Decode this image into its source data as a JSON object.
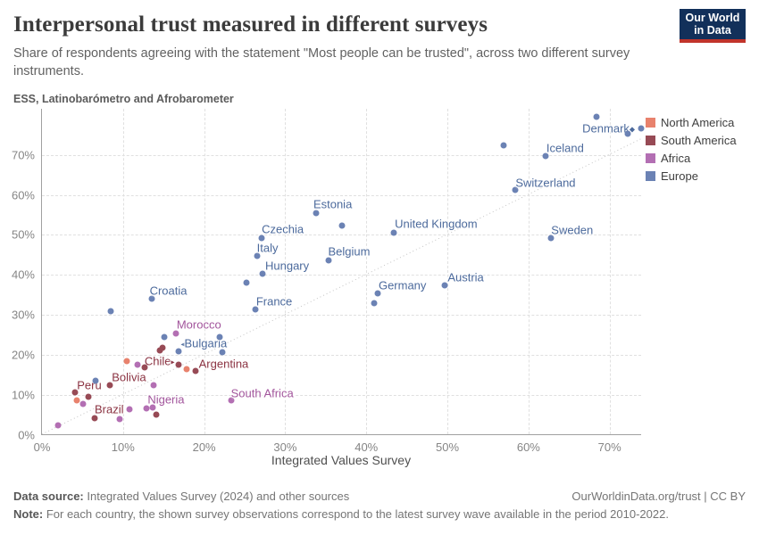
{
  "header": {
    "title": "Interpersonal trust measured in different surveys",
    "subtitle": "Share of respondents agreeing with the statement \"Most people can be trusted\", across two different survey instruments.",
    "logo": {
      "line1": "Our World",
      "line2": "in Data",
      "bg_color": "#12305a",
      "bar_color": "#c1342b"
    }
  },
  "chart_data": {
    "type": "scatter",
    "small_title": "ESS, Latinobarómetro and Afrobarometer",
    "xlabel": "Integrated Values Survey",
    "ylabel": "ESS, Latinobarómetro and Afrobarometer",
    "xlim": [
      0,
      74
    ],
    "ylim": [
      0,
      81.5
    ],
    "grid": true,
    "identity_line": true,
    "x_ticks": [
      {
        "value": 0,
        "label": "0%"
      },
      {
        "value": 10,
        "label": "10%"
      },
      {
        "value": 20,
        "label": "20%"
      },
      {
        "value": 30,
        "label": "30%"
      },
      {
        "value": 40,
        "label": "40%"
      },
      {
        "value": 50,
        "label": "50%"
      },
      {
        "value": 60,
        "label": "60%"
      },
      {
        "value": 70,
        "label": "70%"
      }
    ],
    "y_ticks": [
      {
        "value": 0,
        "label": "0%"
      },
      {
        "value": 10,
        "label": "10%"
      },
      {
        "value": 20,
        "label": "20%"
      },
      {
        "value": 30,
        "label": "30%"
      },
      {
        "value": 40,
        "label": "40%"
      },
      {
        "value": 50,
        "label": "50%"
      },
      {
        "value": 60,
        "label": "60%"
      },
      {
        "value": 70,
        "label": "70%"
      }
    ],
    "series": [
      {
        "name": "North America",
        "color": "#e8826d",
        "label_color": "#d6604d",
        "points": [
          {
            "x": 10.5,
            "y": 18.5
          },
          {
            "x": 17.8,
            "y": 16.5
          },
          {
            "x": 4.3,
            "y": 8.7
          }
        ]
      },
      {
        "name": "South America",
        "color": "#974a55",
        "label_color": "#8b3342",
        "points": [
          {
            "x": 16.8,
            "y": 17.7,
            "label": "Chile",
            "dx": -4,
            "dy": -4,
            "align": "end",
            "suffix": "▸"
          },
          {
            "x": 18.9,
            "y": 16.1,
            "label": "Argentina",
            "dx": 4,
            "dy": -8,
            "align": "start"
          },
          {
            "x": 8.4,
            "y": 12.5,
            "label": "Bolivia",
            "dx": 2,
            "dy": -9,
            "align": "start"
          },
          {
            "x": 4.1,
            "y": 10.7,
            "label": "Peru",
            "dx": 2,
            "dy": -8,
            "align": "start"
          },
          {
            "x": 6.5,
            "y": 4.3,
            "label": "Brazil",
            "dx": 0,
            "dy": -10,
            "align": "start"
          },
          {
            "x": 14.5,
            "y": 21.2
          },
          {
            "x": 14.9,
            "y": 21.9
          },
          {
            "x": 12.7,
            "y": 17.0
          },
          {
            "x": 5.7,
            "y": 9.6
          },
          {
            "x": 14.1,
            "y": 5.1
          }
        ]
      },
      {
        "name": "Africa",
        "color": "#b36fb3",
        "label_color": "#a2559c",
        "points": [
          {
            "x": 16.5,
            "y": 25.3,
            "label": "Morocco",
            "dx": 1,
            "dy": -10,
            "align": "start"
          },
          {
            "x": 13.8,
            "y": 12.5,
            "label": "Nigeria",
            "dx": -7,
            "dy": 16,
            "align": "start"
          },
          {
            "x": 23.3,
            "y": 8.7,
            "label": "South Africa",
            "dx": 0,
            "dy": -8,
            "align": "start"
          },
          {
            "x": 11.8,
            "y": 17.7
          },
          {
            "x": 5.1,
            "y": 7.8
          },
          {
            "x": 10.8,
            "y": 6.5
          },
          {
            "x": 12.9,
            "y": 6.7
          },
          {
            "x": 13.6,
            "y": 6.9
          },
          {
            "x": 9.6,
            "y": 4.0
          },
          {
            "x": 2.0,
            "y": 2.5
          }
        ]
      },
      {
        "name": "Europe",
        "color": "#6b82b4",
        "label_color": "#4c6a9c",
        "points": [
          {
            "x": 73.9,
            "y": 76.5,
            "label": "Denmark",
            "dx": -7,
            "dy": 0,
            "align": "end",
            "suffix": "◆"
          },
          {
            "x": 62.1,
            "y": 69.7,
            "label": "Iceland",
            "dx": 1,
            "dy": -9,
            "align": "start"
          },
          {
            "x": 58.4,
            "y": 61.2,
            "label": "Switzerland",
            "dx": 0,
            "dy": -8,
            "align": "start"
          },
          {
            "x": 62.8,
            "y": 49.2,
            "label": "Sweden",
            "dx": 0,
            "dy": -9,
            "align": "start"
          },
          {
            "x": 43.4,
            "y": 50.5,
            "label": "United Kingdom",
            "dx": 1,
            "dy": -10,
            "align": "start"
          },
          {
            "x": 33.8,
            "y": 55.4,
            "label": "Estonia",
            "dx": -3,
            "dy": -10,
            "align": "start"
          },
          {
            "x": 27.1,
            "y": 49.2,
            "label": "Czechia",
            "dx": 0,
            "dy": -10,
            "align": "start"
          },
          {
            "x": 26.5,
            "y": 44.7,
            "label": "Italy",
            "dx": 0,
            "dy": -9,
            "align": "start"
          },
          {
            "x": 35.4,
            "y": 43.6,
            "label": "Belgium",
            "dx": -1,
            "dy": -10,
            "align": "start"
          },
          {
            "x": 27.2,
            "y": 40.4,
            "label": "Hungary",
            "dx": 3,
            "dy": -9,
            "align": "start"
          },
          {
            "x": 26.3,
            "y": 31.3,
            "label": "France",
            "dx": 1,
            "dy": -9,
            "align": "start"
          },
          {
            "x": 41.4,
            "y": 35.3,
            "label": "Germany",
            "dx": 1,
            "dy": -9,
            "align": "start"
          },
          {
            "x": 49.7,
            "y": 37.5,
            "label": "Austria",
            "dx": 3,
            "dy": -9,
            "align": "start"
          },
          {
            "x": 13.5,
            "y": 34.0,
            "label": "Croatia",
            "dx": -2,
            "dy": -9,
            "align": "start"
          },
          {
            "x": 16.9,
            "y": 21.0,
            "label": "Bulgaria",
            "dx": 2,
            "dy": -9,
            "align": "start",
            "prefix": "◂"
          },
          {
            "x": 68.4,
            "y": 79.5
          },
          {
            "x": 72.2,
            "y": 75.3
          },
          {
            "x": 56.9,
            "y": 72.4
          },
          {
            "x": 37.0,
            "y": 52.3
          },
          {
            "x": 25.2,
            "y": 38.0
          },
          {
            "x": 41.0,
            "y": 32.9
          },
          {
            "x": 8.5,
            "y": 30.9
          },
          {
            "x": 15.1,
            "y": 24.6
          },
          {
            "x": 21.9,
            "y": 24.6
          },
          {
            "x": 22.2,
            "y": 20.6
          },
          {
            "x": 6.6,
            "y": 13.6
          }
        ]
      }
    ]
  },
  "legend": {
    "items": [
      {
        "label": "North America",
        "color": "#e8826d"
      },
      {
        "label": "South America",
        "color": "#974a55"
      },
      {
        "label": "Africa",
        "color": "#b36fb3"
      },
      {
        "label": "Europe",
        "color": "#6b82b4"
      }
    ]
  },
  "footer": {
    "source_label": "Data source:",
    "source_text": " Integrated Values Survey (2024) and other sources",
    "link_text": "OurWorldinData.org/trust | CC BY",
    "note_label": "Note:",
    "note_text": " For each country, the shown survey observations correspond to the latest survey wave available in the period 2010-2022."
  }
}
